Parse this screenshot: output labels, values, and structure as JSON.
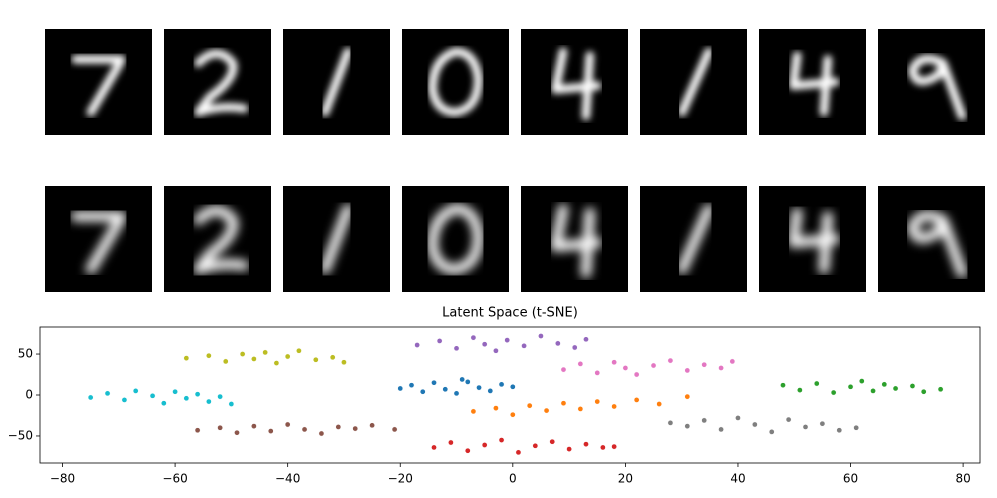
{
  "chart_data": {
    "type": "scatter",
    "title": "Latent Space (t-SNE)",
    "xlim": [
      -84,
      83
    ],
    "ylim": [
      -83,
      83
    ],
    "xticks": [
      {
        "value": -80,
        "label": "−80"
      },
      {
        "value": -60,
        "label": "−60"
      },
      {
        "value": -40,
        "label": "−40"
      },
      {
        "value": -20,
        "label": "−20"
      },
      0,
      20,
      40,
      60,
      80
    ],
    "yticks": [
      {
        "value": -50,
        "label": "−50"
      },
      0,
      50
    ],
    "series": [
      {
        "color": "#bcbd22",
        "x": [
          -58,
          -54,
          -51,
          -48,
          -46,
          -44,
          -42,
          -40,
          -38,
          -35,
          -32,
          -30
        ],
        "y": [
          45,
          48,
          41,
          50,
          44,
          52,
          39,
          47,
          54,
          43,
          46,
          40
        ]
      },
      {
        "color": "#9467bd",
        "x": [
          -17,
          -13,
          -10,
          -7,
          -5,
          -3,
          -1,
          2,
          5,
          8,
          11,
          13
        ],
        "y": [
          61,
          66,
          57,
          70,
          62,
          54,
          67,
          60,
          72,
          63,
          58,
          68
        ]
      },
      {
        "color": "#e377c2",
        "x": [
          9,
          12,
          15,
          18,
          20,
          22,
          25,
          28,
          31,
          34,
          37,
          39
        ],
        "y": [
          31,
          38,
          27,
          40,
          33,
          25,
          36,
          42,
          30,
          37,
          33,
          41
        ]
      },
      {
        "color": "#17becf",
        "x": [
          -75,
          -72,
          -69,
          -67,
          -64,
          -62,
          -60,
          -58,
          -56,
          -54,
          -52,
          -50
        ],
        "y": [
          -3,
          2,
          -6,
          5,
          -1,
          -10,
          4,
          -4,
          1,
          -8,
          -2,
          -11
        ]
      },
      {
        "color": "#1f77b4",
        "x": [
          -20,
          -18,
          -16,
          -14,
          -12,
          -10,
          -8,
          -6,
          -4,
          -2,
          0,
          -9
        ],
        "y": [
          8,
          12,
          4,
          15,
          7,
          2,
          16,
          9,
          5,
          13,
          10,
          19
        ]
      },
      {
        "color": "#2ca02c",
        "x": [
          48,
          51,
          54,
          57,
          60,
          62,
          64,
          66,
          68,
          71,
          73,
          76
        ],
        "y": [
          12,
          6,
          14,
          3,
          10,
          17,
          5,
          13,
          8,
          11,
          4,
          7
        ]
      },
      {
        "color": "#ff7f0e",
        "x": [
          -7,
          -3,
          0,
          3,
          6,
          9,
          12,
          15,
          18,
          22,
          26,
          31
        ],
        "y": [
          -20,
          -16,
          -24,
          -13,
          -19,
          -10,
          -17,
          -8,
          -14,
          -6,
          -11,
          -2
        ]
      },
      {
        "color": "#8c564b",
        "x": [
          -56,
          -52,
          -49,
          -46,
          -43,
          -40,
          -37,
          -34,
          -31,
          -28,
          -25,
          -21
        ],
        "y": [
          -43,
          -40,
          -46,
          -38,
          -44,
          -36,
          -42,
          -47,
          -39,
          -41,
          -37,
          -42
        ]
      },
      {
        "color": "#7f7f7f",
        "x": [
          28,
          31,
          34,
          37,
          40,
          43,
          46,
          49,
          52,
          55,
          58,
          61
        ],
        "y": [
          -34,
          -38,
          -31,
          -42,
          -28,
          -36,
          -45,
          -30,
          -39,
          -35,
          -43,
          -40
        ]
      },
      {
        "color": "#d62728",
        "x": [
          -14,
          -11,
          -8,
          -5,
          -2,
          1,
          4,
          7,
          10,
          13,
          16,
          18
        ],
        "y": [
          -64,
          -58,
          -68,
          -61,
          -55,
          -70,
          -62,
          -57,
          -66,
          -60,
          -64,
          -63
        ]
      }
    ]
  }
}
